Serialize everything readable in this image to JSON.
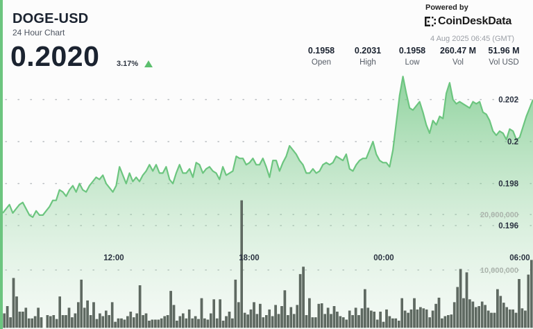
{
  "header": {
    "symbol": "DOGE-USD",
    "subtitle": "24 Hour Chart",
    "price": "0.2020",
    "change_pct": "3.17%",
    "change_direction": "up"
  },
  "branding": {
    "powered_by": "Powered by",
    "brand_name": "CoinDeskData",
    "icon": "coindesk-logo-icon"
  },
  "timestamp": "4 Aug 2025 06:45 (GMT)",
  "stats": [
    {
      "value": "0.1958",
      "label": "Open"
    },
    {
      "value": "0.2031",
      "label": "High"
    },
    {
      "value": "0.1958",
      "label": "Low"
    },
    {
      "value": "260.47 M",
      "label": "Vol"
    },
    {
      "value": "51.96 M",
      "label": "Vol USD"
    }
  ],
  "colors": {
    "accent": "#6cc57f",
    "line": "#6cc57f",
    "volume_bar": "#5f6a62",
    "up": "#5cbf6e"
  },
  "chart_data": {
    "type": "line",
    "title": "DOGE-USD 24 Hour Chart",
    "xlabel": "",
    "ylabel": "",
    "x_ticks": [
      "12:00",
      "18:00",
      "00:00",
      "06:00"
    ],
    "y_ticks": [
      "0.196",
      "0.198",
      "0.2",
      "0.202"
    ],
    "ylim": [
      0.1955,
      0.2034
    ],
    "volume_ticks": [
      "10,000,000",
      "20,000,000"
    ],
    "grid": true,
    "series": [
      {
        "name": "Price",
        "values": [
          0.1966,
          0.1968,
          0.197,
          0.1966,
          0.1968,
          0.197,
          0.1971,
          0.1968,
          0.1965,
          0.1964,
          0.1967,
          0.1965,
          0.1965,
          0.1967,
          0.1969,
          0.1972,
          0.1972,
          0.1977,
          0.1976,
          0.1974,
          0.1977,
          0.1979,
          0.1976,
          0.198,
          0.1977,
          0.1976,
          0.1979,
          0.1981,
          0.1983,
          0.1982,
          0.1984,
          0.198,
          0.1978,
          0.1976,
          0.1979,
          0.1988,
          0.1984,
          0.198,
          0.1985,
          0.1981,
          0.1983,
          0.1981,
          0.1984,
          0.1986,
          0.1989,
          0.1986,
          0.1989,
          0.1985,
          0.1985,
          0.1988,
          0.1982,
          0.198,
          0.1985,
          0.1989,
          0.1985,
          0.1985,
          0.1987,
          0.1983,
          0.199,
          0.1989,
          0.1985,
          0.1987,
          0.1988,
          0.1986,
          0.1985,
          0.1982,
          0.1988,
          0.1984,
          0.1985,
          0.1986,
          0.1993,
          0.1992,
          0.1992,
          0.1989,
          0.199,
          0.1992,
          0.1989,
          0.1989,
          0.1992,
          0.1988,
          0.1983,
          0.1991,
          0.1991,
          0.1986,
          0.199,
          0.1993,
          0.1998,
          0.1996,
          0.1994,
          0.1991,
          0.1989,
          0.1985,
          0.1985,
          0.1987,
          0.1985,
          0.1986,
          0.1989,
          0.199,
          0.1989,
          0.199,
          0.1993,
          0.1992,
          0.1991,
          0.1994,
          0.1987,
          0.1986,
          0.1989,
          0.1991,
          0.1992,
          0.1992,
          0.1996,
          0.2,
          0.1994,
          0.1991,
          0.199,
          0.199,
          0.1988,
          0.1996,
          0.2009,
          0.2022,
          0.2031,
          0.2023,
          0.2016,
          0.2015,
          0.2017,
          0.2019,
          0.2014,
          0.2008,
          0.2004,
          0.201,
          0.2008,
          0.2012,
          0.2011,
          0.2023,
          0.2028,
          0.202,
          0.2018,
          0.2019,
          0.2018,
          0.2017,
          0.2016,
          0.2019,
          0.2018,
          0.2019,
          0.2014,
          0.2013,
          0.201,
          0.2005,
          0.2003,
          0.2005,
          0.2004,
          0.2001,
          0.2006,
          0.2005,
          0.2001,
          0.2002,
          0.2007,
          0.2012,
          0.2016,
          0.202
        ]
      },
      {
        "name": "Volume (M)",
        "values": [
          2.5,
          3.8,
          1.8,
          8.8,
          5.5,
          2.8,
          2.8,
          3.5,
          1.6,
          1.6,
          2,
          3.5,
          1.8,
          0,
          2.2,
          2,
          2.2,
          1.5,
          5.5,
          2.2,
          2.2,
          3.5,
          1.8,
          2.5,
          4.5,
          8.5,
          3.5,
          4.8,
          2.2,
          4.5,
          1.5,
          2.5,
          2,
          3,
          2.2,
          4.5,
          1,
          1.6,
          1.6,
          1.4,
          2,
          2.8,
          1.8,
          2.5,
          7.5,
          2.2,
          2.5,
          1.2,
          1.4,
          1.4,
          1.4,
          1.6,
          2,
          2.2,
          6.5,
          4,
          1.2,
          2,
          2.5,
          1.6,
          3.2,
          1.6,
          2,
          1.5,
          5.2,
          1.6,
          1.4,
          2.5,
          5,
          1.6,
          5,
          1.2,
          2,
          2.8,
          1.6,
          8.5,
          4.5,
          22.6,
          2.6,
          2.3,
          3.2,
          4.5,
          2.4,
          4.2,
          1.8,
          2.2,
          3.2,
          2,
          4,
          2.4,
          3.8,
          6.6,
          2.2,
          3.6,
          2.4,
          4,
          9.5,
          10.8,
          2.2,
          5.2,
          1.8,
          1.8,
          4.2,
          4.3,
          2.4,
          3.5,
          2.4,
          3.8,
          2.8,
          2,
          1.8,
          1.4,
          3,
          2.2,
          3.5,
          2.2,
          3.4,
          6.8,
          3.5,
          3,
          2.8,
          1.4,
          2.8,
          1,
          3.2,
          2,
          1.6,
          1.6,
          1.2,
          5.2,
          3,
          2.6,
          3.2,
          5.2,
          3.2,
          3.6,
          3.4,
          3.2,
          1.8,
          3,
          4.2,
          5.3,
          1.6,
          2,
          2.2,
          2.3,
          4.5,
          7.2,
          10.4,
          5.2,
          9.8,
          5,
          4.6,
          3.6,
          3.8,
          4.6,
          4,
          3,
          2.6,
          2.6,
          6.8,
          5.6,
          4.4,
          3.6,
          3.2,
          3.2,
          2.6,
          8.6,
          3.4,
          3,
          9.4,
          12
        ]
      }
    ]
  }
}
